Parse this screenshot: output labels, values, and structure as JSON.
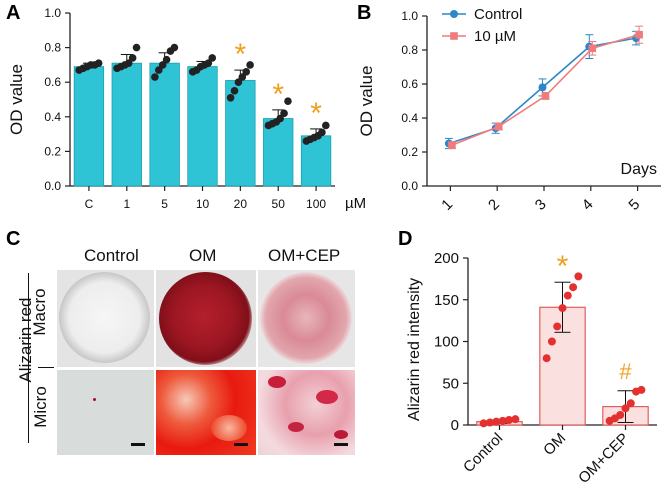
{
  "colors": {
    "bar_fill": "#2ec4d6",
    "bar_stroke": "#1a9fb0",
    "dot": "#222222",
    "sig": "#f0a020",
    "control_line": "#2e86c8",
    "treat_line": "#ee7c7c",
    "d_bar_fill": "#fbe0e0",
    "d_bar_stroke": "#e05050",
    "d_dot": "#e53030",
    "axis": "#222222"
  },
  "chart_data": [
    {
      "panel": "A",
      "type": "bar",
      "ylabel": "OD value",
      "xunit": "µM",
      "ylim": [
        0,
        1.0
      ],
      "yticks": [
        "0.0",
        "0.2",
        "0.4",
        "0.6",
        "0.8",
        "1.0"
      ],
      "categories": [
        "C",
        "1",
        "5",
        "10",
        "20",
        "50",
        "100"
      ],
      "values": [
        0.69,
        0.71,
        0.71,
        0.69,
        0.61,
        0.39,
        0.29
      ],
      "errors": [
        0.02,
        0.05,
        0.06,
        0.03,
        0.06,
        0.05,
        0.04
      ],
      "points": [
        [
          0.67,
          0.68,
          0.69,
          0.7,
          0.7,
          0.71
        ],
        [
          0.68,
          0.69,
          0.7,
          0.71,
          0.74,
          0.8
        ],
        [
          0.63,
          0.67,
          0.7,
          0.73,
          0.78,
          0.8
        ],
        [
          0.66,
          0.67,
          0.69,
          0.7,
          0.71,
          0.74
        ],
        [
          0.51,
          0.55,
          0.6,
          0.63,
          0.66,
          0.7
        ],
        [
          0.35,
          0.36,
          0.37,
          0.39,
          0.42,
          0.49
        ],
        [
          0.26,
          0.27,
          0.28,
          0.29,
          0.31,
          0.35
        ]
      ],
      "significance": [
        "",
        "",
        "",
        "",
        "*",
        "*",
        "*"
      ]
    },
    {
      "panel": "B",
      "type": "line",
      "ylabel": "OD value",
      "xlabel": "Days",
      "ylim": [
        0,
        1.0
      ],
      "yticks": [
        "0.0",
        "0.2",
        "0.4",
        "0.6",
        "0.8",
        "1.0"
      ],
      "x": [
        "1",
        "2",
        "3",
        "4",
        "5"
      ],
      "series": [
        {
          "name": "Control",
          "values": [
            0.25,
            0.34,
            0.58,
            0.82,
            0.87
          ],
          "errors": [
            0.03,
            0.03,
            0.05,
            0.07,
            0.04
          ]
        },
        {
          "name": "10 µM",
          "values": [
            0.24,
            0.35,
            0.53,
            0.81,
            0.89
          ],
          "errors": [
            0.02,
            0.02,
            0.02,
            0.04,
            0.05
          ]
        }
      ]
    },
    {
      "panel": "D",
      "type": "bar",
      "ylabel": "Alizarin red intensity",
      "ylim": [
        0,
        200
      ],
      "yticks": [
        "0",
        "50",
        "100",
        "150",
        "200"
      ],
      "categories": [
        "Control",
        "OM",
        "OM+CEP"
      ],
      "values": [
        4,
        141,
        22
      ],
      "errors": [
        2,
        30,
        19
      ],
      "points": [
        [
          2,
          3,
          4,
          5,
          6,
          7
        ],
        [
          80,
          100,
          118,
          140,
          155,
          165,
          178
        ],
        [
          5,
          8,
          12,
          20,
          26,
          40,
          42
        ]
      ],
      "significance": [
        "",
        "*",
        "#"
      ]
    }
  ],
  "panel_c": {
    "columns": [
      "Control",
      "OM",
      "OM+CEP"
    ],
    "group_label": "Alizarin red",
    "rows": [
      "Macro",
      "Micro"
    ]
  },
  "panel_labels": [
    "A",
    "B",
    "C",
    "D"
  ]
}
